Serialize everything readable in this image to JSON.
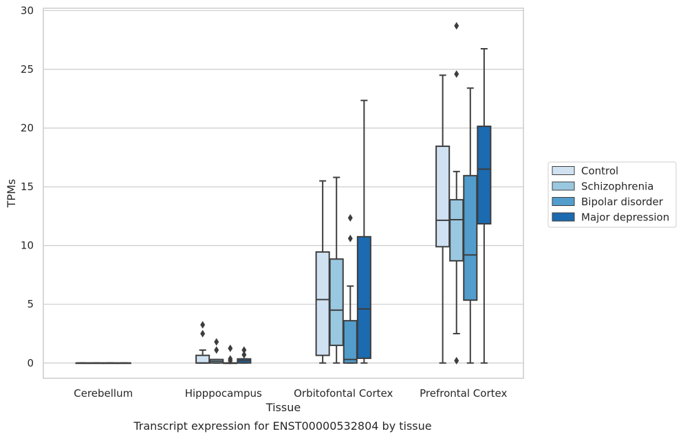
{
  "chart_data": {
    "type": "box",
    "xlabel": "Tissue",
    "ylabel": "TPMs",
    "caption": "Transcript expression for ENST00000532804 by tissue",
    "ylim": [
      -1.3,
      30.2
    ],
    "yticks": [
      0,
      5,
      10,
      15,
      20,
      25,
      30
    ],
    "grid": "horizontal",
    "legend_position": "right",
    "categories": [
      "Cerebellum",
      "Hipppocampus",
      "Orbitofontal Cortex",
      "Prefrontal Cortex"
    ],
    "series": [
      {
        "name": "Control",
        "color": "#d0e1f2",
        "boxes": [
          {
            "whislo": 0,
            "q1": 0,
            "med": 0,
            "q3": 0,
            "whishi": 0,
            "fliers": []
          },
          {
            "whislo": 0,
            "q1": 0,
            "med": 0,
            "q3": 0.65,
            "whishi": 1.1,
            "fliers": [
              2.5,
              3.25
            ]
          },
          {
            "whislo": 0,
            "q1": 0.65,
            "med": 5.4,
            "q3": 9.45,
            "whishi": 15.5,
            "fliers": []
          },
          {
            "whislo": 0,
            "q1": 9.9,
            "med": 12.15,
            "q3": 18.45,
            "whishi": 24.5,
            "fliers": []
          }
        ]
      },
      {
        "name": "Schizophrenia",
        "color": "#9ac8e0",
        "boxes": [
          {
            "whislo": 0,
            "q1": 0,
            "med": 0,
            "q3": 0,
            "whishi": 0,
            "fliers": []
          },
          {
            "whislo": 0,
            "q1": 0,
            "med": 0.15,
            "q3": 0.3,
            "whishi": 0.3,
            "fliers": [
              1.1,
              1.8
            ]
          },
          {
            "whislo": 0,
            "q1": 1.5,
            "med": 4.5,
            "q3": 8.85,
            "whishi": 15.8,
            "fliers": []
          },
          {
            "whislo": 2.5,
            "q1": 8.7,
            "med": 12.2,
            "q3": 13.9,
            "whishi": 16.3,
            "fliers": [
              0.2,
              24.6,
              28.7
            ]
          }
        ]
      },
      {
        "name": "Bipolar disorder",
        "color": "#529dcc",
        "boxes": [
          {
            "whislo": 0,
            "q1": 0,
            "med": 0,
            "q3": 0,
            "whishi": 0,
            "fliers": []
          },
          {
            "whislo": 0,
            "q1": 0,
            "med": 0,
            "q3": 0,
            "whishi": 0,
            "fliers": [
              0.2,
              0.35,
              1.25
            ]
          },
          {
            "whislo": 0,
            "q1": 0,
            "med": 0.3,
            "q3": 3.6,
            "whishi": 6.55,
            "fliers": [
              10.6,
              12.35
            ]
          },
          {
            "whislo": 0,
            "q1": 5.35,
            "med": 9.2,
            "q3": 15.95,
            "whishi": 23.4,
            "fliers": []
          }
        ]
      },
      {
        "name": "Major depression",
        "color": "#1c6aaf",
        "boxes": [
          {
            "whislo": 0,
            "q1": 0,
            "med": 0,
            "q3": 0,
            "whishi": 0,
            "fliers": []
          },
          {
            "whislo": 0,
            "q1": 0,
            "med": 0.2,
            "q3": 0.35,
            "whishi": 0.35,
            "fliers": [
              0.7,
              1.1
            ]
          },
          {
            "whislo": 0,
            "q1": 0.4,
            "med": 4.6,
            "q3": 10.75,
            "whishi": 22.35,
            "fliers": []
          },
          {
            "whislo": 0,
            "q1": 11.85,
            "med": 16.5,
            "q3": 20.15,
            "whishi": 26.75,
            "fliers": []
          }
        ]
      }
    ]
  }
}
